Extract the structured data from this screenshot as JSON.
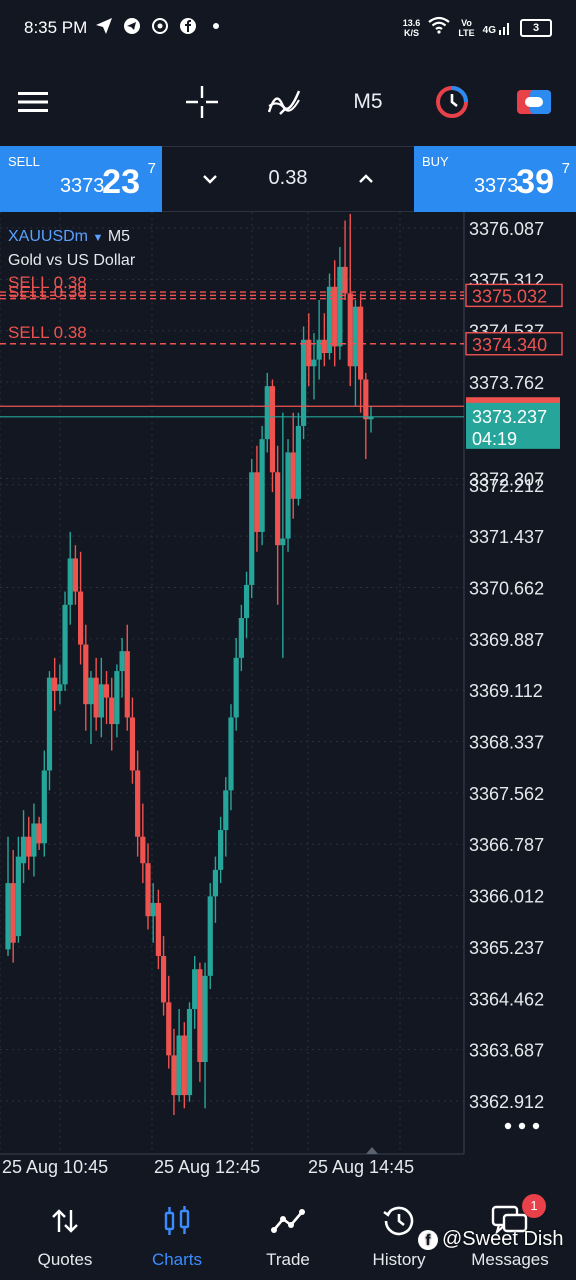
{
  "status": {
    "time": "8:35 PM",
    "net_speed_top": "13.6",
    "net_speed_bottom": "K/S",
    "volte_top": "Vo",
    "volte_bottom": "LTE",
    "signal": "4G",
    "battery": "3"
  },
  "toolbar": {
    "timeframe": "M5",
    "icons": [
      "menu-icon",
      "crosshair-icon",
      "indicator-icon",
      "clock-icon",
      "trade-toggle-icon"
    ]
  },
  "order": {
    "sell_label": "SELL",
    "sell_price_prefix": "3373.",
    "sell_price_big": "23",
    "sell_price_sup": "7",
    "buy_label": "BUY",
    "buy_price_prefix": "3373.",
    "buy_price_big": "39",
    "buy_price_sup": "7",
    "lot": "0.38"
  },
  "chart": {
    "symbol": "XAUUSDm",
    "timeframe": "M5",
    "description": "Gold vs US Dollar",
    "order_line_label_1": "SELL 0.38",
    "order_line_label_2": "SELL 0.38",
    "order_line_label_3": "SELL 0.38",
    "price_tag_1": "3375.032",
    "price_tag_2": "3374.340",
    "price_tag_bid": "3373.237",
    "countdown": "04:19",
    "hidden_tick_1": "3375.312",
    "hidden_tick_2": "3374.537",
    "hidden_tick_3": "3372.307"
  },
  "chart_data": {
    "type": "candlestick",
    "title": "",
    "y_ticks": [
      "3376.087",
      "3373.762",
      "3372.212",
      "3371.437",
      "3370.662",
      "3369.887",
      "3369.112",
      "3368.337",
      "3367.562",
      "3366.787",
      "3366.012",
      "3365.237",
      "3364.462",
      "3363.687",
      "3362.912"
    ],
    "x_labels": [
      "25 Aug 10:45",
      "25 Aug 12:45",
      "25 Aug 14:45"
    ],
    "ylim": [
      3362.6,
      3376.3
    ],
    "grid": true,
    "colors": {
      "up": "#26a69a",
      "down": "#ef5350",
      "bid_line": "#26a69a",
      "ask_line": "#ef5350",
      "order_line": "#ef5350"
    },
    "candles": [
      {
        "o": 3365.2,
        "h": 3366.9,
        "l": 3365.1,
        "c": 3366.2
      },
      {
        "o": 3366.2,
        "h": 3366.7,
        "l": 3365.0,
        "c": 3365.3
      },
      {
        "o": 3365.4,
        "h": 3366.9,
        "l": 3365.3,
        "c": 3366.6
      },
      {
        "o": 3366.5,
        "h": 3367.3,
        "l": 3366.2,
        "c": 3366.9
      },
      {
        "o": 3366.9,
        "h": 3367.2,
        "l": 3366.4,
        "c": 3366.6
      },
      {
        "o": 3366.6,
        "h": 3367.4,
        "l": 3366.3,
        "c": 3367.1
      },
      {
        "o": 3367.1,
        "h": 3367.2,
        "l": 3366.7,
        "c": 3366.8
      },
      {
        "o": 3366.8,
        "h": 3368.2,
        "l": 3366.6,
        "c": 3367.9
      },
      {
        "o": 3367.9,
        "h": 3369.4,
        "l": 3367.6,
        "c": 3369.3
      },
      {
        "o": 3369.3,
        "h": 3369.6,
        "l": 3368.8,
        "c": 3369.1
      },
      {
        "o": 3369.1,
        "h": 3369.5,
        "l": 3368.9,
        "c": 3369.2
      },
      {
        "o": 3369.2,
        "h": 3370.6,
        "l": 3369.1,
        "c": 3370.4
      },
      {
        "o": 3370.4,
        "h": 3371.5,
        "l": 3370.1,
        "c": 3371.1
      },
      {
        "o": 3371.1,
        "h": 3371.3,
        "l": 3370.4,
        "c": 3370.6
      },
      {
        "o": 3370.6,
        "h": 3371.2,
        "l": 3369.5,
        "c": 3369.8
      },
      {
        "o": 3369.8,
        "h": 3370.1,
        "l": 3368.5,
        "c": 3368.9
      },
      {
        "o": 3368.9,
        "h": 3369.4,
        "l": 3368.3,
        "c": 3369.3
      },
      {
        "o": 3369.3,
        "h": 3369.6,
        "l": 3368.5,
        "c": 3368.7
      },
      {
        "o": 3368.7,
        "h": 3369.6,
        "l": 3368.4,
        "c": 3369.2
      },
      {
        "o": 3369.2,
        "h": 3369.4,
        "l": 3368.6,
        "c": 3369.0
      },
      {
        "o": 3369.0,
        "h": 3369.3,
        "l": 3368.2,
        "c": 3368.6
      },
      {
        "o": 3368.6,
        "h": 3369.5,
        "l": 3368.4,
        "c": 3369.4
      },
      {
        "o": 3369.4,
        "h": 3369.9,
        "l": 3369.0,
        "c": 3369.7
      },
      {
        "o": 3369.7,
        "h": 3370.1,
        "l": 3368.5,
        "c": 3368.7
      },
      {
        "o": 3368.7,
        "h": 3369.0,
        "l": 3367.7,
        "c": 3367.9
      },
      {
        "o": 3367.9,
        "h": 3368.2,
        "l": 3366.6,
        "c": 3366.9
      },
      {
        "o": 3366.9,
        "h": 3367.4,
        "l": 3366.2,
        "c": 3366.5
      },
      {
        "o": 3366.5,
        "h": 3366.8,
        "l": 3365.5,
        "c": 3365.7
      },
      {
        "o": 3365.7,
        "h": 3366.2,
        "l": 3365.3,
        "c": 3365.9
      },
      {
        "o": 3365.9,
        "h": 3366.1,
        "l": 3364.9,
        "c": 3365.1
      },
      {
        "o": 3365.1,
        "h": 3365.4,
        "l": 3364.2,
        "c": 3364.4
      },
      {
        "o": 3364.4,
        "h": 3364.8,
        "l": 3363.4,
        "c": 3363.6
      },
      {
        "o": 3363.6,
        "h": 3364.0,
        "l": 3362.7,
        "c": 3363.0
      },
      {
        "o": 3363.0,
        "h": 3364.3,
        "l": 3362.9,
        "c": 3363.9
      },
      {
        "o": 3363.9,
        "h": 3364.1,
        "l": 3362.8,
        "c": 3363.0
      },
      {
        "o": 3363.0,
        "h": 3364.4,
        "l": 3362.9,
        "c": 3364.3
      },
      {
        "o": 3364.3,
        "h": 3365.1,
        "l": 3364.0,
        "c": 3364.9
      },
      {
        "o": 3364.9,
        "h": 3365.0,
        "l": 3363.2,
        "c": 3363.5
      },
      {
        "o": 3363.5,
        "h": 3365.0,
        "l": 3362.8,
        "c": 3364.8
      },
      {
        "o": 3364.8,
        "h": 3366.2,
        "l": 3364.6,
        "c": 3366.0
      },
      {
        "o": 3366.0,
        "h": 3366.6,
        "l": 3365.6,
        "c": 3366.4
      },
      {
        "o": 3366.4,
        "h": 3367.2,
        "l": 3366.2,
        "c": 3367.0
      },
      {
        "o": 3367.0,
        "h": 3367.8,
        "l": 3366.6,
        "c": 3367.6
      },
      {
        "o": 3367.6,
        "h": 3368.9,
        "l": 3367.3,
        "c": 3368.7
      },
      {
        "o": 3368.7,
        "h": 3369.9,
        "l": 3368.5,
        "c": 3369.6
      },
      {
        "o": 3369.6,
        "h": 3370.4,
        "l": 3369.4,
        "c": 3370.2
      },
      {
        "o": 3370.2,
        "h": 3370.9,
        "l": 3369.9,
        "c": 3370.7
      },
      {
        "o": 3370.7,
        "h": 3372.6,
        "l": 3370.5,
        "c": 3372.4
      },
      {
        "o": 3372.4,
        "h": 3372.8,
        "l": 3371.2,
        "c": 3371.5
      },
      {
        "o": 3371.5,
        "h": 3373.1,
        "l": 3371.3,
        "c": 3372.9
      },
      {
        "o": 3372.9,
        "h": 3373.9,
        "l": 3372.7,
        "c": 3373.7
      },
      {
        "o": 3373.7,
        "h": 3373.8,
        "l": 3372.1,
        "c": 3372.4
      },
      {
        "o": 3372.4,
        "h": 3372.8,
        "l": 3370.4,
        "c": 3371.3
      },
      {
        "o": 3371.3,
        "h": 3373.3,
        "l": 3369.6,
        "c": 3371.4
      },
      {
        "o": 3371.4,
        "h": 3372.9,
        "l": 3371.2,
        "c": 3372.7
      },
      {
        "o": 3372.7,
        "h": 3373.3,
        "l": 3371.7,
        "c": 3372.0
      },
      {
        "o": 3372.0,
        "h": 3373.3,
        "l": 3371.9,
        "c": 3373.1
      },
      {
        "o": 3373.1,
        "h": 3374.6,
        "l": 3372.9,
        "c": 3374.4
      },
      {
        "o": 3374.4,
        "h": 3374.8,
        "l": 3373.7,
        "c": 3374.0
      },
      {
        "o": 3374.0,
        "h": 3374.5,
        "l": 3373.5,
        "c": 3374.1
      },
      {
        "o": 3374.1,
        "h": 3375.0,
        "l": 3373.8,
        "c": 3374.4
      },
      {
        "o": 3374.4,
        "h": 3374.8,
        "l": 3374.0,
        "c": 3374.2
      },
      {
        "o": 3374.2,
        "h": 3375.4,
        "l": 3374.1,
        "c": 3375.2
      },
      {
        "o": 3375.2,
        "h": 3375.6,
        "l": 3374.0,
        "c": 3374.3
      },
      {
        "o": 3374.3,
        "h": 3375.8,
        "l": 3374.1,
        "c": 3375.5
      },
      {
        "o": 3375.5,
        "h": 3376.2,
        "l": 3375.0,
        "c": 3375.1
      },
      {
        "o": 3375.1,
        "h": 3376.3,
        "l": 3373.7,
        "c": 3374.0
      },
      {
        "o": 3374.0,
        "h": 3375.0,
        "l": 3373.4,
        "c": 3374.9
      },
      {
        "o": 3374.9,
        "h": 3375.1,
        "l": 3373.3,
        "c": 3373.8
      },
      {
        "o": 3373.8,
        "h": 3373.9,
        "l": 3372.6,
        "c": 3373.2
      },
      {
        "o": 3373.2,
        "h": 3373.4,
        "l": 3373.0,
        "c": 3373.24
      }
    ],
    "order_levels": [
      3375.12,
      3375.07,
      3375.02,
      3374.34
    ],
    "bid": 3373.237,
    "ask": 3373.397
  },
  "bottom_nav": {
    "quotes": "Quotes",
    "charts": "Charts",
    "trade": "Trade",
    "history": "History",
    "messages": "Messages",
    "messages_badge": "1"
  },
  "watermark": {
    "fb_letter": "f",
    "text": "@Sweet Dish"
  }
}
